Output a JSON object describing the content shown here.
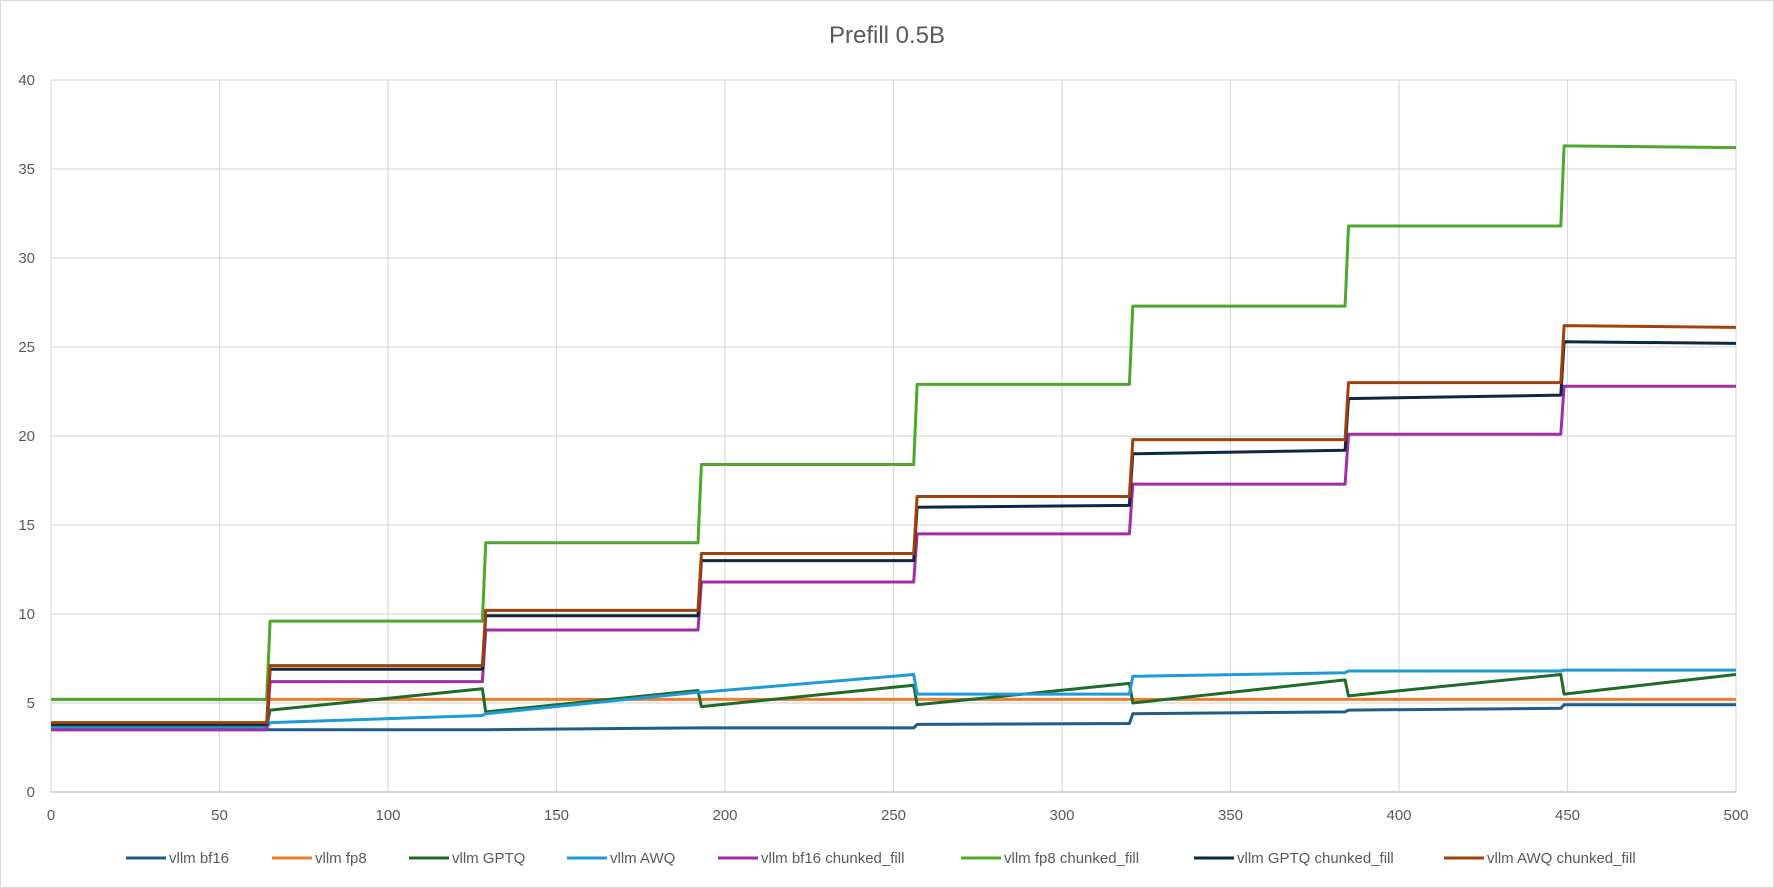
{
  "chart_data": {
    "type": "line",
    "title": "Prefill 0.5B",
    "xlabel": "",
    "ylabel": "",
    "xlim": [
      0,
      500
    ],
    "ylim": [
      0,
      40
    ],
    "x_ticks": [
      "0",
      "50",
      "100",
      "150",
      "200",
      "250",
      "300",
      "350",
      "400",
      "450",
      "500"
    ],
    "y_ticks": [
      "0",
      "5",
      "10",
      "15",
      "20",
      "25",
      "30",
      "35",
      "40"
    ],
    "grid": true,
    "legend_position": "bottom",
    "x": [
      0,
      64,
      65,
      128,
      129,
      192,
      193,
      256,
      257,
      320,
      321,
      384,
      385,
      448,
      449,
      500
    ],
    "series": [
      {
        "name": "vllm bf16",
        "color": "#1f5c8b",
        "values": [
          3.5,
          3.5,
          3.5,
          3.5,
          3.5,
          3.6,
          3.6,
          3.6,
          3.8,
          3.85,
          4.4,
          4.5,
          4.6,
          4.7,
          4.9,
          4.9
        ]
      },
      {
        "name": "vllm fp8",
        "color": "#ed7d31",
        "values": [
          5.2,
          5.2,
          5.2,
          5.2,
          5.2,
          5.2,
          5.2,
          5.2,
          5.2,
          5.2,
          5.2,
          5.2,
          5.2,
          5.2,
          5.2,
          5.2
        ]
      },
      {
        "name": "vllm GPTQ",
        "color": "#1f6b2a",
        "values": [
          3.7,
          3.7,
          4.6,
          5.8,
          4.5,
          5.7,
          4.8,
          6.0,
          4.9,
          6.1,
          5.0,
          6.3,
          5.4,
          6.6,
          5.5,
          6.6
        ]
      },
      {
        "name": "vllm AWQ",
        "color": "#1f9ad6",
        "values": [
          3.6,
          3.6,
          3.9,
          4.3,
          4.4,
          5.6,
          5.6,
          6.6,
          5.5,
          5.5,
          6.5,
          6.7,
          6.8,
          6.8,
          6.85,
          6.85
        ]
      },
      {
        "name": "vllm bf16 chunked_fill",
        "color": "#a22ea6",
        "values": [
          3.5,
          3.5,
          6.2,
          6.2,
          9.1,
          9.1,
          11.8,
          11.8,
          14.5,
          14.5,
          17.3,
          17.3,
          20.1,
          20.1,
          22.8,
          22.8
        ]
      },
      {
        "name": "vllm fp8 chunked_fill",
        "color": "#4ea72e",
        "values": [
          5.2,
          5.2,
          9.6,
          9.6,
          14.0,
          14.0,
          18.4,
          18.4,
          22.9,
          22.9,
          27.3,
          27.3,
          31.8,
          31.8,
          36.3,
          36.2
        ]
      },
      {
        "name": "vllm GPTQ chunked_fill",
        "color": "#0e2841",
        "values": [
          3.8,
          3.8,
          6.9,
          6.9,
          9.9,
          9.9,
          13.0,
          13.0,
          16.0,
          16.1,
          19.0,
          19.2,
          22.1,
          22.3,
          25.3,
          25.2
        ]
      },
      {
        "name": "vllm AWQ chunked_fill",
        "color": "#a0410d",
        "values": [
          3.9,
          3.9,
          7.1,
          7.1,
          10.2,
          10.2,
          13.4,
          13.4,
          16.6,
          16.6,
          19.8,
          19.8,
          23.0,
          23.0,
          26.2,
          26.1
        ]
      }
    ]
  }
}
